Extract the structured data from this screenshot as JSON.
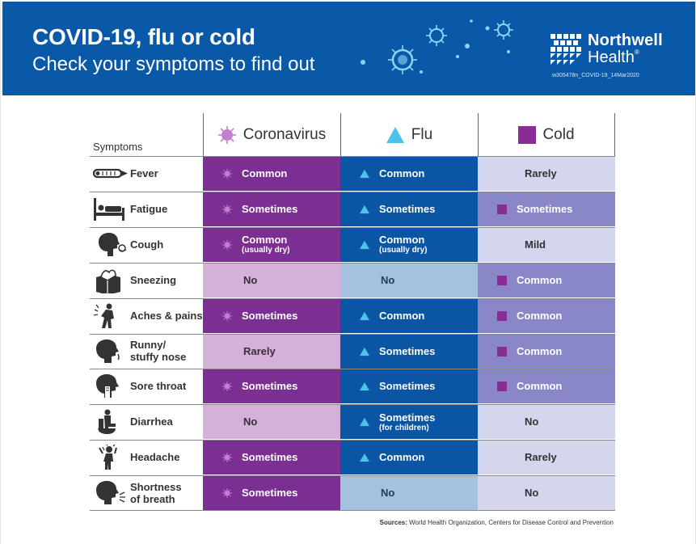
{
  "header": {
    "title": "COVID-19, flu or cold",
    "subtitle": "Check your symptoms to find out",
    "logo_line1": "Northwell",
    "logo_line2": "Health",
    "logo_trademark": "®",
    "doc_code": "w305478n_COVID-19_14Mar2020"
  },
  "colors": {
    "banner": "#0a58a8",
    "coronavirus": "#7b2f93",
    "coronavirus_light": "#d5b1d9",
    "flu": "#0b55a5",
    "flu_light": "#a4c1df",
    "cold": "#8a87c8",
    "cold_light": "#d3d6ec",
    "flu_marker": "#4cc3ea"
  },
  "table": {
    "symptoms_header": "Symptoms",
    "columns": [
      {
        "label": "Coronavirus",
        "icon": "virus-icon"
      },
      {
        "label": "Flu",
        "icon": "triangle-icon"
      },
      {
        "label": "Cold",
        "icon": "square-icon"
      }
    ],
    "rows": [
      {
        "symptom": "Fever",
        "icon": "thermometer-icon",
        "coronavirus": {
          "text": "Common",
          "sub": ""
        },
        "flu": {
          "text": "Common",
          "sub": ""
        },
        "cold": {
          "text": "Rarely",
          "sub": ""
        }
      },
      {
        "symptom": "Fatigue",
        "icon": "bed-icon",
        "coronavirus": {
          "text": "Sometimes",
          "sub": ""
        },
        "flu": {
          "text": "Sometimes",
          "sub": ""
        },
        "cold": {
          "text": "Sometimes",
          "sub": ""
        }
      },
      {
        "symptom": "Cough",
        "icon": "cough-icon",
        "coronavirus": {
          "text": "Common",
          "sub": "(usually dry)"
        },
        "flu": {
          "text": "Common",
          "sub": "(usually dry)"
        },
        "cold": {
          "text": "Mild",
          "sub": ""
        }
      },
      {
        "symptom": "Sneezing",
        "icon": "tissue-box-icon",
        "coronavirus": {
          "text": "No",
          "sub": ""
        },
        "flu": {
          "text": "No",
          "sub": ""
        },
        "cold": {
          "text": "Common",
          "sub": ""
        }
      },
      {
        "symptom": "Aches & pains",
        "icon": "aching-person-icon",
        "coronavirus": {
          "text": "Sometimes",
          "sub": ""
        },
        "flu": {
          "text": "Common",
          "sub": ""
        },
        "cold": {
          "text": "Common",
          "sub": ""
        }
      },
      {
        "symptom_line1": "Runny/",
        "symptom_line2": "stuffy nose",
        "icon": "runny-nose-icon",
        "coronavirus": {
          "text": "Rarely",
          "sub": ""
        },
        "flu": {
          "text": "Sometimes",
          "sub": ""
        },
        "cold": {
          "text": "Common",
          "sub": ""
        }
      },
      {
        "symptom": "Sore throat",
        "icon": "sore-throat-icon",
        "coronavirus": {
          "text": "Sometimes",
          "sub": ""
        },
        "flu": {
          "text": "Sometimes",
          "sub": ""
        },
        "cold": {
          "text": "Common",
          "sub": ""
        }
      },
      {
        "symptom": "Diarrhea",
        "icon": "toilet-icon",
        "coronavirus": {
          "text": "No",
          "sub": ""
        },
        "flu": {
          "text": "Sometimes",
          "sub": "(for children)"
        },
        "cold": {
          "text": "No",
          "sub": ""
        }
      },
      {
        "symptom": "Headache",
        "icon": "headache-icon",
        "coronavirus": {
          "text": "Sometimes",
          "sub": ""
        },
        "flu": {
          "text": "Common",
          "sub": ""
        },
        "cold": {
          "text": "Rarely",
          "sub": ""
        }
      },
      {
        "symptom_line1": "Shortness",
        "symptom_line2": "of breath",
        "icon": "breath-icon",
        "coronavirus": {
          "text": "Sometimes",
          "sub": ""
        },
        "flu": {
          "text": "No",
          "sub": ""
        },
        "cold": {
          "text": "No",
          "sub": ""
        }
      }
    ]
  },
  "sources": {
    "label": "Sources:",
    "text": " World Health Organization, Centers for Disease Control and Prevention"
  }
}
